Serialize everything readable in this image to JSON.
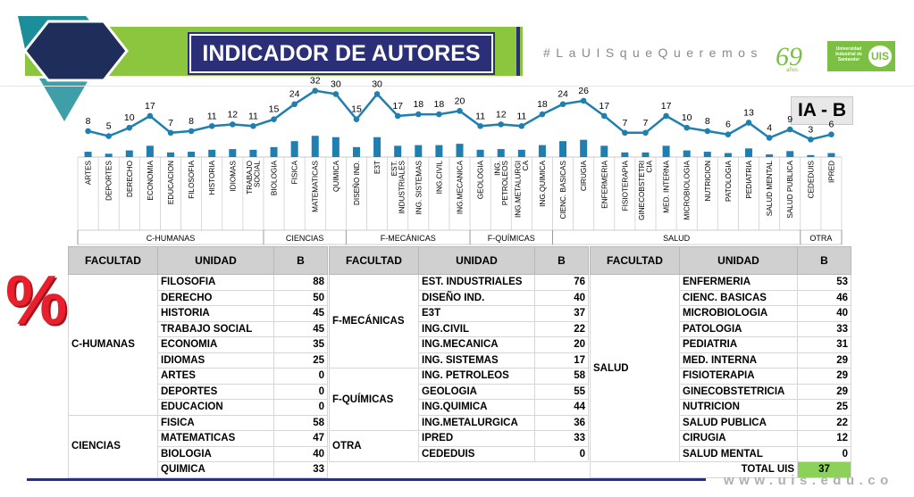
{
  "header": {
    "title": "INDICADOR DE AUTORES",
    "hashtag": "#LaUISqueQueremos",
    "logo_anos": "69 años",
    "logo_uis_text": "Universidad Industrial de Santander",
    "logo_uis_mark": "UIS",
    "badge": "IA - B",
    "percent_symbol": "%",
    "url": "www.uis.edu.co"
  },
  "colors": {
    "navy": "#2a2f78",
    "teal": "#1c8e99",
    "lime": "#8cc63f",
    "red": "#e8202e",
    "line": "#1e7fb0"
  },
  "chart_data": {
    "type": "line",
    "categories": [
      "ARTES",
      "DEPORTES",
      "DERECHO",
      "ECONOMIA",
      "EDUCACION",
      "FILOSOFIA",
      "HISTORIA",
      "IDIOMAS",
      "TRABAJO SOCIAL",
      "BIOLOGIA",
      "FISICA",
      "MATEMATICAS",
      "QUIMICA",
      "DISEÑO IND.",
      "E3T",
      "EST. INDUSTRIALES",
      "ING. SISTEMAS",
      "ING.CIVIL",
      "ING.MECANICA",
      "GEOLOGIA",
      "ING. PETROLEOS",
      "ING.METALURGICA",
      "ING.QUIMICA",
      "CIENC. BASICAS",
      "CIRUGIA",
      "ENFERMERIA",
      "FISIOTERAPIA",
      "GINECOBSTETRICIA",
      "MED. INTERNA",
      "MICROBIOLOGIA",
      "NUTRICION",
      "PATOLOGIA",
      "PEDIATRIA",
      "SALUD MENTAL",
      "SALUD PUBLICA",
      "CEDEDUIS",
      "IPRED"
    ],
    "category_display": [
      "ARTES",
      "DEPORTES",
      "DERECHO",
      "ECONOMIA",
      "EDUCACION",
      "FILOSOFIA",
      "HISTORIA",
      "IDIOMAS",
      "TRABAJO\nSOCIAL",
      "BIOLOGIA",
      "FISICA",
      "MATEMATICAS",
      "QUIMICA",
      "DISEÑO IND.",
      "E3T",
      "EST.\nINDUSTRIALES",
      "ING. SISTEMAS",
      "ING.CIVIL",
      "ING.MECANICA",
      "GEOLOGIA",
      "ING.\nPETROLEOS",
      "ING.METALURGI\nCA",
      "ING.QUIMICA",
      "CIENC. BASICAS",
      "CIRUGIA",
      "ENFERMERIA",
      "FISIOTERAPIA",
      "GINECOBSTETRI\nCIA",
      "MED. INTERNA",
      "MICROBIOLOGIA",
      "NUTRICION",
      "PATOLOGIA",
      "PEDIATRIA",
      "SALUD MENTAL",
      "SALUD PUBLICA",
      "CEDEDUIS",
      "IPRED"
    ],
    "values": [
      8,
      5,
      10,
      17,
      7,
      8,
      11,
      12,
      11,
      15,
      24,
      32,
      30,
      15,
      30,
      17,
      18,
      18,
      20,
      11,
      12,
      11,
      18,
      24,
      26,
      17,
      7,
      7,
      17,
      10,
      8,
      6,
      13,
      4,
      9,
      3,
      6
    ],
    "groups": [
      {
        "label": "C-HUMANAS",
        "count": 9
      },
      {
        "label": "CIENCIAS",
        "count": 4
      },
      {
        "label": "F-MECÁNICAS",
        "count": 6
      },
      {
        "label": "F-QUÍMICAS",
        "count": 4
      },
      {
        "label": "SALUD",
        "count": 12
      },
      {
        "label": "OTRA",
        "count": 2
      }
    ],
    "ylim": [
      0,
      35
    ],
    "title": "",
    "xlabel": "",
    "ylabel": ""
  },
  "tables": [
    {
      "headers": [
        "FACULTAD",
        "UNIDAD",
        "B"
      ],
      "groups": [
        {
          "facultad": "C-HUMANAS",
          "rows": [
            [
              "FILOSOFIA",
              "88"
            ],
            [
              "DERECHO",
              "50"
            ],
            [
              "HISTORIA",
              "45"
            ],
            [
              "TRABAJO SOCIAL",
              "45"
            ],
            [
              "ECONOMIA",
              "35"
            ],
            [
              "IDIOMAS",
              "25"
            ],
            [
              "ARTES",
              "0"
            ],
            [
              "DEPORTES",
              "0"
            ],
            [
              "EDUCACION",
              "0"
            ]
          ]
        },
        {
          "facultad": "CIENCIAS",
          "rows": [
            [
              "FISICA",
              "58"
            ],
            [
              "MATEMATICAS",
              "47"
            ],
            [
              "BIOLOGIA",
              "40"
            ],
            [
              "QUIMICA",
              "33"
            ]
          ]
        }
      ]
    },
    {
      "headers": [
        "FACULTAD",
        "UNIDAD",
        "B"
      ],
      "groups": [
        {
          "facultad": "F-MECÁNICAS",
          "rows": [
            [
              "EST. INDUSTRIALES",
              "76"
            ],
            [
              "DISEÑO IND.",
              "40"
            ],
            [
              "E3T",
              "37"
            ],
            [
              "ING.CIVIL",
              "22"
            ],
            [
              "ING.MECANICA",
              "20"
            ],
            [
              "ING. SISTEMAS",
              "17"
            ]
          ]
        },
        {
          "facultad": "F-QUÍMICAS",
          "rows": [
            [
              "ING. PETROLEOS",
              "58"
            ],
            [
              "GEOLOGIA",
              "55"
            ],
            [
              "ING.QUIMICA",
              "44"
            ],
            [
              "ING.METALURGICA",
              "36"
            ]
          ]
        },
        {
          "facultad": "OTRA",
          "rows": [
            [
              "IPRED",
              "33"
            ],
            [
              "CEDEDUIS",
              "0"
            ]
          ]
        }
      ]
    },
    {
      "headers": [
        "FACULTAD",
        "UNIDAD",
        "B"
      ],
      "groups": [
        {
          "facultad": "SALUD",
          "rows": [
            [
              "ENFERMERIA",
              "53"
            ],
            [
              "CIENC. BASICAS",
              "46"
            ],
            [
              "MICROBIOLOGIA",
              "40"
            ],
            [
              "PATOLOGIA",
              "33"
            ],
            [
              "PEDIATRIA",
              "31"
            ],
            [
              "MED. INTERNA",
              "29"
            ],
            [
              "FISIOTERAPIA",
              "29"
            ],
            [
              "GINECOBSTETRICIA",
              "29"
            ],
            [
              "NUTRICION",
              "25"
            ],
            [
              "SALUD PUBLICA",
              "22"
            ],
            [
              "CIRUGIA",
              "12"
            ],
            [
              "SALUD MENTAL",
              "0"
            ]
          ]
        }
      ]
    }
  ],
  "total": {
    "label": "TOTAL UIS",
    "value": "37"
  }
}
